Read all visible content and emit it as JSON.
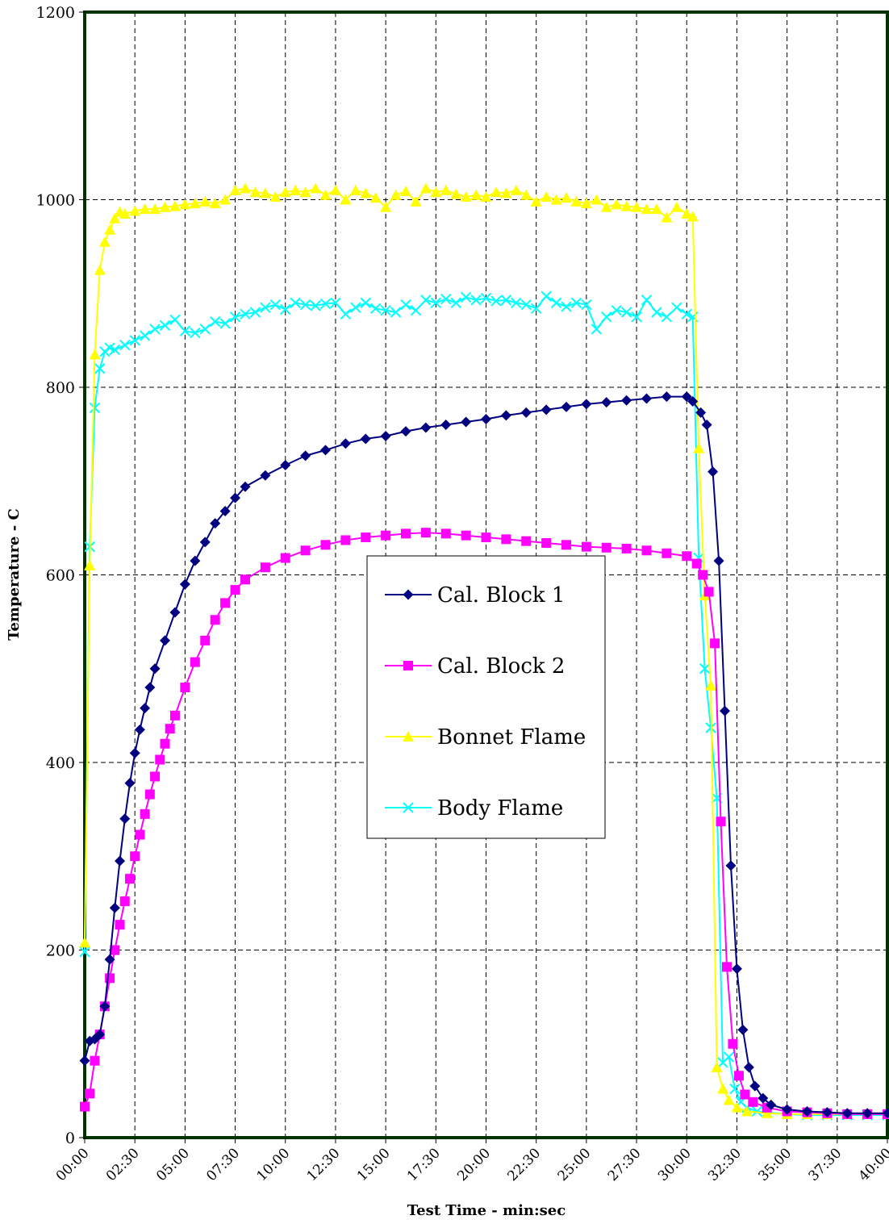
{
  "chart_data": {
    "type": "line",
    "title": "",
    "xlabel": "Test Time - min:sec",
    "ylabel": "Temperature - C",
    "xlim_minutes": [
      0,
      40
    ],
    "ylim": [
      0,
      1200
    ],
    "y_ticks": [
      0,
      200,
      400,
      600,
      800,
      1000,
      1200
    ],
    "x_tick_labels": [
      "00:00",
      "02:30",
      "05:00",
      "07:30",
      "10:00",
      "12:30",
      "15:00",
      "17:30",
      "20:00",
      "22:30",
      "25:00",
      "27:30",
      "30:00",
      "32:30",
      "35:00",
      "37:30",
      "40:00"
    ],
    "grid": true,
    "legend_position": "center",
    "series": [
      {
        "name": "Cal. Block 1",
        "color": "#000080",
        "marker": "diamond",
        "points": [
          [
            0,
            82
          ],
          [
            0.25,
            103
          ],
          [
            0.5,
            105
          ],
          [
            0.75,
            110
          ],
          [
            1,
            140
          ],
          [
            1.25,
            190
          ],
          [
            1.5,
            245
          ],
          [
            1.75,
            295
          ],
          [
            2,
            340
          ],
          [
            2.25,
            378
          ],
          [
            2.5,
            410
          ],
          [
            2.75,
            435
          ],
          [
            3,
            458
          ],
          [
            3.25,
            480
          ],
          [
            3.5,
            500
          ],
          [
            4,
            530
          ],
          [
            4.5,
            560
          ],
          [
            5,
            590
          ],
          [
            5.5,
            615
          ],
          [
            6,
            635
          ],
          [
            6.5,
            655
          ],
          [
            7,
            668
          ],
          [
            7.5,
            682
          ],
          [
            8,
            694
          ],
          [
            9,
            706
          ],
          [
            10,
            717
          ],
          [
            11,
            727
          ],
          [
            12,
            733
          ],
          [
            13,
            740
          ],
          [
            14,
            745
          ],
          [
            15,
            748
          ],
          [
            16,
            753
          ],
          [
            17,
            757
          ],
          [
            18,
            760
          ],
          [
            19,
            763
          ],
          [
            20,
            766
          ],
          [
            21,
            770
          ],
          [
            22,
            773
          ],
          [
            23,
            776
          ],
          [
            24,
            779
          ],
          [
            25,
            782
          ],
          [
            26,
            784
          ],
          [
            27,
            786
          ],
          [
            28,
            788
          ],
          [
            29,
            790
          ],
          [
            30,
            790
          ],
          [
            30.3,
            785
          ],
          [
            30.7,
            773
          ],
          [
            31,
            760
          ],
          [
            31.3,
            710
          ],
          [
            31.6,
            615
          ],
          [
            31.9,
            455
          ],
          [
            32.2,
            290
          ],
          [
            32.5,
            180
          ],
          [
            32.8,
            115
          ],
          [
            33.1,
            75
          ],
          [
            33.4,
            55
          ],
          [
            33.8,
            42
          ],
          [
            34.2,
            35
          ],
          [
            35,
            30
          ],
          [
            36,
            28
          ],
          [
            37,
            27
          ],
          [
            38,
            26
          ],
          [
            39,
            26
          ],
          [
            40,
            26
          ]
        ]
      },
      {
        "name": "Cal. Block 2",
        "color": "#FF00FF",
        "marker": "square",
        "points": [
          [
            0,
            33
          ],
          [
            0.25,
            47
          ],
          [
            0.5,
            82
          ],
          [
            0.75,
            110
          ],
          [
            1,
            140
          ],
          [
            1.25,
            170
          ],
          [
            1.5,
            200
          ],
          [
            1.75,
            227
          ],
          [
            2,
            252
          ],
          [
            2.25,
            276
          ],
          [
            2.5,
            300
          ],
          [
            2.75,
            323
          ],
          [
            3,
            345
          ],
          [
            3.25,
            366
          ],
          [
            3.5,
            385
          ],
          [
            3.75,
            403
          ],
          [
            4,
            420
          ],
          [
            4.25,
            436
          ],
          [
            4.5,
            450
          ],
          [
            5,
            480
          ],
          [
            5.5,
            507
          ],
          [
            6,
            530
          ],
          [
            6.5,
            552
          ],
          [
            7,
            570
          ],
          [
            7.5,
            584
          ],
          [
            8,
            595
          ],
          [
            9,
            608
          ],
          [
            10,
            618
          ],
          [
            11,
            626
          ],
          [
            12,
            632
          ],
          [
            13,
            637
          ],
          [
            14,
            640
          ],
          [
            15,
            642
          ],
          [
            16,
            644
          ],
          [
            17,
            645
          ],
          [
            18,
            644
          ],
          [
            19,
            642
          ],
          [
            20,
            640
          ],
          [
            21,
            638
          ],
          [
            22,
            636
          ],
          [
            23,
            634
          ],
          [
            24,
            632
          ],
          [
            25,
            630
          ],
          [
            26,
            629
          ],
          [
            27,
            628
          ],
          [
            28,
            626
          ],
          [
            29,
            623
          ],
          [
            30,
            620
          ],
          [
            30.5,
            612
          ],
          [
            30.8,
            600
          ],
          [
            31.1,
            582
          ],
          [
            31.4,
            527
          ],
          [
            31.7,
            337
          ],
          [
            32,
            182
          ],
          [
            32.3,
            100
          ],
          [
            32.6,
            66
          ],
          [
            32.9,
            46
          ],
          [
            33.3,
            38
          ],
          [
            34,
            32
          ],
          [
            35,
            28
          ],
          [
            36,
            27
          ],
          [
            37,
            26
          ],
          [
            38,
            25
          ],
          [
            39,
            25
          ],
          [
            40,
            25
          ]
        ]
      },
      {
        "name": "Bonnet Flame",
        "color": "#FFFF00",
        "marker": "triangle",
        "points": [
          [
            0,
            208
          ],
          [
            0.25,
            610
          ],
          [
            0.5,
            835
          ],
          [
            0.75,
            925
          ],
          [
            1,
            955
          ],
          [
            1.25,
            968
          ],
          [
            1.5,
            980
          ],
          [
            1.75,
            987
          ],
          [
            2,
            985
          ],
          [
            2.5,
            988
          ],
          [
            3,
            990
          ],
          [
            3.5,
            990
          ],
          [
            4,
            992
          ],
          [
            4.5,
            993
          ],
          [
            5,
            995
          ],
          [
            5.5,
            996
          ],
          [
            6,
            998
          ],
          [
            6.5,
            996
          ],
          [
            7,
            1000
          ],
          [
            7.5,
            1010
          ],
          [
            8,
            1012
          ],
          [
            8.5,
            1008
          ],
          [
            9,
            1007
          ],
          [
            9.5,
            1003
          ],
          [
            10,
            1008
          ],
          [
            10.5,
            1010
          ],
          [
            11,
            1008
          ],
          [
            11.5,
            1012
          ],
          [
            12,
            1005
          ],
          [
            12.5,
            1010
          ],
          [
            13,
            1000
          ],
          [
            13.5,
            1010
          ],
          [
            14,
            1007
          ],
          [
            14.5,
            1002
          ],
          [
            15,
            992
          ],
          [
            15.5,
            1005
          ],
          [
            16,
            1009
          ],
          [
            16.5,
            998
          ],
          [
            17,
            1012
          ],
          [
            17.5,
            1008
          ],
          [
            18,
            1010
          ],
          [
            18.5,
            1006
          ],
          [
            19,
            1003
          ],
          [
            19.5,
            1005
          ],
          [
            20,
            1003
          ],
          [
            20.5,
            1008
          ],
          [
            21,
            1007
          ],
          [
            21.5,
            1010
          ],
          [
            22,
            1005
          ],
          [
            22.5,
            998
          ],
          [
            23,
            1003
          ],
          [
            23.5,
            1000
          ],
          [
            24,
            1002
          ],
          [
            24.5,
            998
          ],
          [
            25,
            996
          ],
          [
            25.5,
            1000
          ],
          [
            26,
            992
          ],
          [
            26.5,
            995
          ],
          [
            27,
            993
          ],
          [
            27.5,
            992
          ],
          [
            28,
            990
          ],
          [
            28.5,
            990
          ],
          [
            29,
            981
          ],
          [
            29.5,
            992
          ],
          [
            30,
            985
          ],
          [
            30.3,
            982
          ],
          [
            30.6,
            735
          ],
          [
            30.9,
            578
          ],
          [
            31.2,
            482
          ],
          [
            31.5,
            75
          ],
          [
            31.8,
            52
          ],
          [
            32.1,
            40
          ],
          [
            32.5,
            32
          ],
          [
            33,
            28
          ],
          [
            34,
            26
          ],
          [
            35,
            25
          ],
          [
            36,
            25
          ],
          [
            37,
            25
          ],
          [
            38,
            25
          ],
          [
            39,
            25
          ],
          [
            40,
            25
          ]
        ]
      },
      {
        "name": "Body Flame",
        "color": "#00FFFF",
        "marker": "x",
        "points": [
          [
            0,
            198
          ],
          [
            0.25,
            630
          ],
          [
            0.5,
            778
          ],
          [
            0.75,
            820
          ],
          [
            1,
            838
          ],
          [
            1.25,
            842
          ],
          [
            1.5,
            840
          ],
          [
            2,
            845
          ],
          [
            2.5,
            850
          ],
          [
            3,
            855
          ],
          [
            3.5,
            862
          ],
          [
            4,
            866
          ],
          [
            4.5,
            872
          ],
          [
            5,
            860
          ],
          [
            5.5,
            858
          ],
          [
            6,
            862
          ],
          [
            6.5,
            870
          ],
          [
            7,
            868
          ],
          [
            7.5,
            875
          ],
          [
            8,
            878
          ],
          [
            8.5,
            880
          ],
          [
            9,
            885
          ],
          [
            9.5,
            888
          ],
          [
            10,
            883
          ],
          [
            10.5,
            890
          ],
          [
            11,
            888
          ],
          [
            11.5,
            887
          ],
          [
            12,
            889
          ],
          [
            12.5,
            890
          ],
          [
            13,
            878
          ],
          [
            13.5,
            885
          ],
          [
            14,
            890
          ],
          [
            14.5,
            884
          ],
          [
            15,
            882
          ],
          [
            15.5,
            880
          ],
          [
            16,
            888
          ],
          [
            16.5,
            882
          ],
          [
            17,
            893
          ],
          [
            17.5,
            890
          ],
          [
            18,
            894
          ],
          [
            18.5,
            890
          ],
          [
            19,
            896
          ],
          [
            19.5,
            893
          ],
          [
            20,
            895
          ],
          [
            20.5,
            892
          ],
          [
            21,
            893
          ],
          [
            21.5,
            890
          ],
          [
            22,
            888
          ],
          [
            22.5,
            884
          ],
          [
            23,
            897
          ],
          [
            23.5,
            890
          ],
          [
            24,
            886
          ],
          [
            24.5,
            890
          ],
          [
            25,
            888
          ],
          [
            25.5,
            862
          ],
          [
            26,
            875
          ],
          [
            26.5,
            882
          ],
          [
            27,
            880
          ],
          [
            27.5,
            875
          ],
          [
            28,
            893
          ],
          [
            28.5,
            880
          ],
          [
            29,
            875
          ],
          [
            29.5,
            885
          ],
          [
            30,
            878
          ],
          [
            30.3,
            875
          ],
          [
            30.6,
            618
          ],
          [
            30.9,
            500
          ],
          [
            31.2,
            437
          ],
          [
            31.5,
            362
          ],
          [
            31.8,
            80
          ],
          [
            32.1,
            86
          ],
          [
            32.4,
            52
          ],
          [
            32.7,
            38
          ],
          [
            33,
            32
          ],
          [
            33.5,
            28
          ],
          [
            34,
            27
          ],
          [
            35,
            25
          ],
          [
            36,
            24
          ],
          [
            37,
            24
          ],
          [
            38,
            24
          ],
          [
            39,
            24
          ],
          [
            40,
            24
          ]
        ]
      }
    ]
  }
}
